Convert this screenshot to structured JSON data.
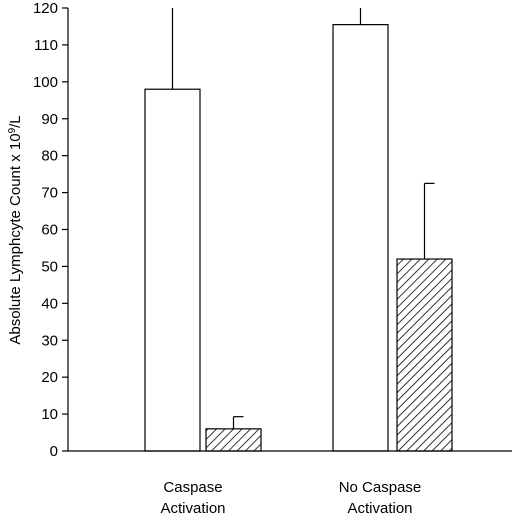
{
  "chart_data": {
    "type": "bar",
    "ylabel": "Absolute Lymphcyte Count x 10",
    "ylabel_sup": "9",
    "ylabel_suffix": "/L",
    "ylim": [
      0,
      120
    ],
    "yticks": [
      0,
      10,
      20,
      30,
      40,
      50,
      60,
      70,
      80,
      90,
      100,
      110,
      120
    ],
    "grid": false,
    "legend": "none",
    "groups": [
      {
        "label_lines": [
          "Caspase",
          "Activation"
        ],
        "bars": [
          {
            "value": 98,
            "error": 24,
            "fill": "open"
          },
          {
            "value": 6,
            "error": 3.3,
            "fill": "hatched"
          }
        ]
      },
      {
        "label_lines": [
          "No Caspase",
          "Activation"
        ],
        "bars": [
          {
            "value": 115.5,
            "error": 6,
            "fill": "open"
          },
          {
            "value": 52,
            "error": 20.5,
            "fill": "hatched"
          }
        ]
      }
    ]
  }
}
